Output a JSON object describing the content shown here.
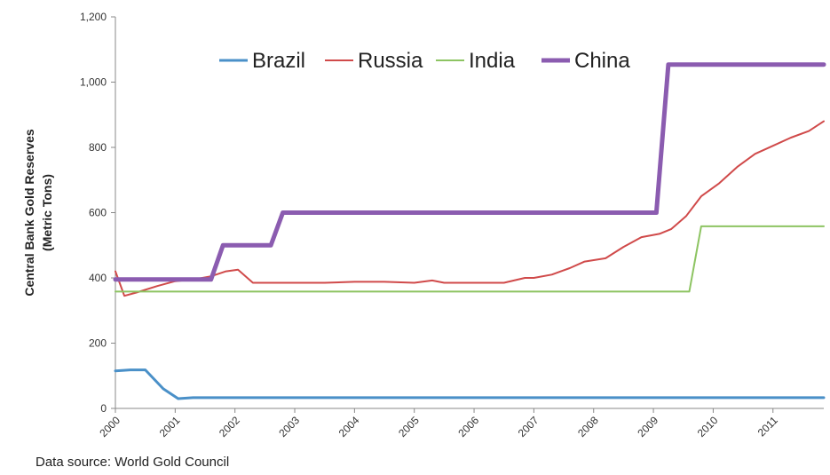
{
  "chart_data": {
    "type": "line",
    "ylabel": "Central Bank Gold Reserves (Metric Tons)",
    "ylabel_lines": [
      "Central Bank Gold Reserves",
      "(Metric Tons)"
    ],
    "ylim": [
      0,
      1200
    ],
    "yticks": [
      0,
      200,
      400,
      600,
      800,
      1000,
      1200
    ],
    "ytick_labels": [
      "0",
      "200",
      "400",
      "600",
      "800",
      "1,000",
      "1,200"
    ],
    "xlim": [
      2000,
      2011.85
    ],
    "xticks": [
      2000,
      2001,
      2002,
      2003,
      2004,
      2005,
      2006,
      2007,
      2008,
      2009,
      2010,
      2011
    ],
    "xtick_labels": [
      "2000",
      "2001",
      "2002",
      "2003",
      "2004",
      "2005",
      "2006",
      "2007",
      "2008",
      "2009",
      "2010",
      "2011"
    ],
    "legend_position": "top",
    "grid": false,
    "series": [
      {
        "name": "Brazil",
        "color": "#4a90c8",
        "width": 3,
        "x": [
          2000,
          2000.25,
          2000.5,
          2000.8,
          2001.05,
          2001.3,
          2002,
          2005,
          2011.85
        ],
        "y": [
          115,
          118,
          118,
          60,
          30,
          33,
          33,
          33,
          33
        ]
      },
      {
        "name": "Russia",
        "color": "#d04a4a",
        "width": 2,
        "x": [
          2000,
          2000.15,
          2000.35,
          2000.7,
          2001,
          2001.3,
          2001.6,
          2001.85,
          2002.05,
          2002.3,
          2002.6,
          2003,
          2003.5,
          2004,
          2004.5,
          2005,
          2005.3,
          2005.5,
          2006,
          2006.5,
          2006.85,
          2007,
          2007.3,
          2007.6,
          2007.85,
          2008.2,
          2008.5,
          2008.8,
          2009.1,
          2009.3,
          2009.55,
          2009.8,
          2010.1,
          2010.4,
          2010.7,
          2011,
          2011.3,
          2011.6,
          2011.85
        ],
        "y": [
          420,
          345,
          355,
          375,
          390,
          395,
          405,
          420,
          425,
          385,
          385,
          385,
          385,
          388,
          388,
          385,
          392,
          385,
          385,
          385,
          400,
          400,
          410,
          430,
          450,
          460,
          495,
          525,
          535,
          550,
          590,
          650,
          690,
          740,
          780,
          805,
          830,
          850,
          880
        ]
      },
      {
        "name": "India",
        "color": "#8dc462",
        "width": 2,
        "x": [
          2000,
          2009.6,
          2009.8,
          2011.85
        ],
        "y": [
          358,
          358,
          558,
          558
        ]
      },
      {
        "name": "China",
        "color": "#8b5cb0",
        "width": 5,
        "x": [
          2000,
          2001.6,
          2001.8,
          2002.6,
          2002.8,
          2009.05,
          2009.25,
          2011.85
        ],
        "y": [
          395,
          395,
          500,
          500,
          600,
          600,
          1054,
          1054
        ]
      }
    ]
  },
  "source_note": "Data source: World Gold Council"
}
